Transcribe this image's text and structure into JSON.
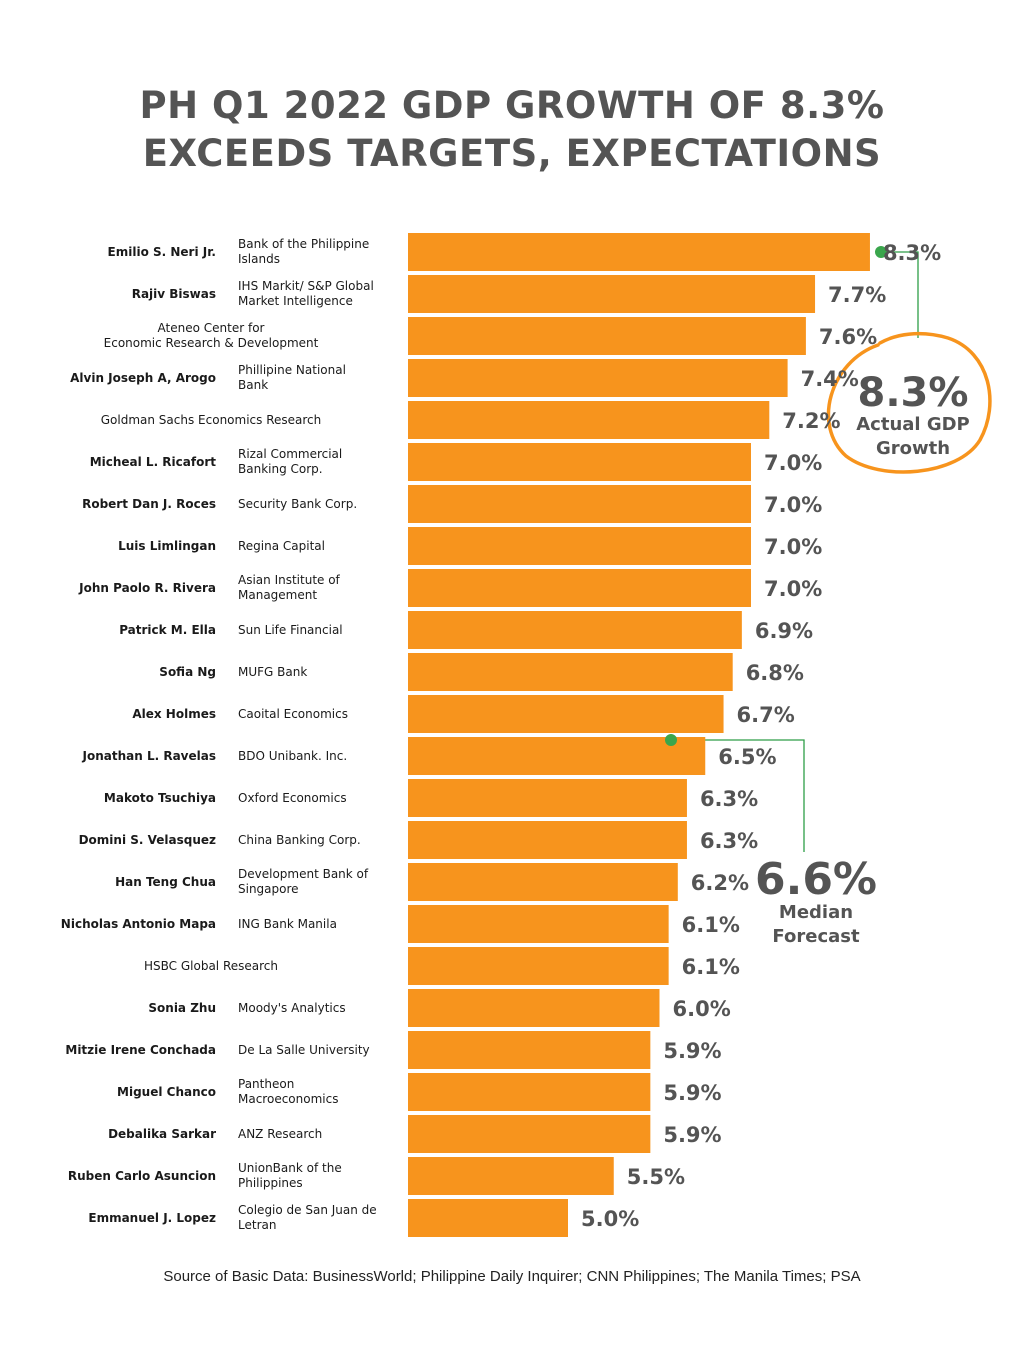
{
  "title": {
    "line1": "PH Q1 2022 GDP GROWTH OF 8.3%",
    "line2": "EXCEEDS TARGETS, EXPECTATIONS"
  },
  "chart_data": {
    "type": "bar",
    "orientation": "horizontal",
    "value_suffix": "%",
    "rows": [
      {
        "name": "Emilio S. Neri Jr.",
        "institution": "Bank of the Philippine Islands",
        "value": 8.3,
        "label": "8.3%"
      },
      {
        "name": "Rajiv Biswas",
        "institution": "IHS Markit/ S&P Global Market Intelligence",
        "value": 7.7,
        "label": "7.7%"
      },
      {
        "name": "",
        "institution": "Ateneo Center for Economic Research & Development",
        "value": 7.6,
        "label": "7.6%"
      },
      {
        "name": "Alvin Joseph A, Arogo",
        "institution": "Phillipine National Bank",
        "value": 7.4,
        "label": "7.4%"
      },
      {
        "name": "",
        "institution": "Goldman Sachs Economics Research",
        "value": 7.2,
        "label": "7.2%"
      },
      {
        "name": "Micheal L. Ricafort",
        "institution": "Rizal Commercial Banking Corp.",
        "value": 7.0,
        "label": "7.0%"
      },
      {
        "name": "Robert Dan J. Roces",
        "institution": "Security Bank Corp.",
        "value": 7.0,
        "label": "7.0%"
      },
      {
        "name": "Luis Limlingan",
        "institution": "Regina Capital",
        "value": 7.0,
        "label": "7.0%"
      },
      {
        "name": "John Paolo R. Rivera",
        "institution": "Asian Institute of Management",
        "value": 7.0,
        "label": "7.0%"
      },
      {
        "name": "Patrick M. Ella",
        "institution": "Sun Life Financial",
        "value": 6.9,
        "label": "6.9%"
      },
      {
        "name": "Sofia Ng",
        "institution": "MUFG Bank",
        "value": 6.8,
        "label": "6.8%"
      },
      {
        "name": "Alex Holmes",
        "institution": "Caoital Economics",
        "value": 6.7,
        "label": "6.7%"
      },
      {
        "name": "Jonathan L. Ravelas",
        "institution": "BDO Unibank. Inc.",
        "value": 6.5,
        "label": "6.5%"
      },
      {
        "name": "Makoto Tsuchiya",
        "institution": "Oxford Economics",
        "value": 6.3,
        "label": "6.3%"
      },
      {
        "name": "Domini S. Velasquez",
        "institution": "China Banking Corp.",
        "value": 6.3,
        "label": "6.3%"
      },
      {
        "name": "Han Teng Chua",
        "institution": "Development Bank of Singapore",
        "value": 6.2,
        "label": "6.2%"
      },
      {
        "name": "Nicholas Antonio Mapa",
        "institution": "ING Bank Manila",
        "value": 6.1,
        "label": "6.1%"
      },
      {
        "name": "",
        "institution": "HSBC Global Research",
        "value": 6.1,
        "label": "6.1%"
      },
      {
        "name": "Sonia Zhu",
        "institution": "Moody's Analytics",
        "value": 6.0,
        "label": "6.0%"
      },
      {
        "name": "Mitzie Irene Conchada",
        "institution": "De La Salle University",
        "value": 5.9,
        "label": "5.9%"
      },
      {
        "name": "Miguel Chanco",
        "institution": "Pantheon Macroeconomics",
        "value": 5.9,
        "label": "5.9%"
      },
      {
        "name": "Debalika Sarkar",
        "institution": "ANZ Research",
        "value": 5.9,
        "label": "5.9%"
      },
      {
        "name": "Ruben Carlo Asuncion",
        "institution": "UnionBank of the Philippines",
        "value": 5.5,
        "label": "5.5%"
      },
      {
        "name": "Emmanuel J. Lopez",
        "institution": "Colegio de San Juan de Letran",
        "value": 5.0,
        "label": "5.0%"
      }
    ],
    "annotations": [
      {
        "value_text": "8.3%",
        "line1": "Actual GDP",
        "line2": "Growth",
        "value": 8.3
      },
      {
        "value_text": "6.6%",
        "line1": "Median",
        "line2": "Forecast",
        "value": 6.6
      }
    ]
  },
  "source": "Source of Basic Data: BusinessWorld; Philippine Daily Inquirer; CNN Philippines; The Manila Times; PSA",
  "colors": {
    "bar": "#f7941d",
    "value_text": "#545454",
    "title": "#545454",
    "annotation_line": "#2e9e47",
    "actual_ring": "#f7941d"
  }
}
